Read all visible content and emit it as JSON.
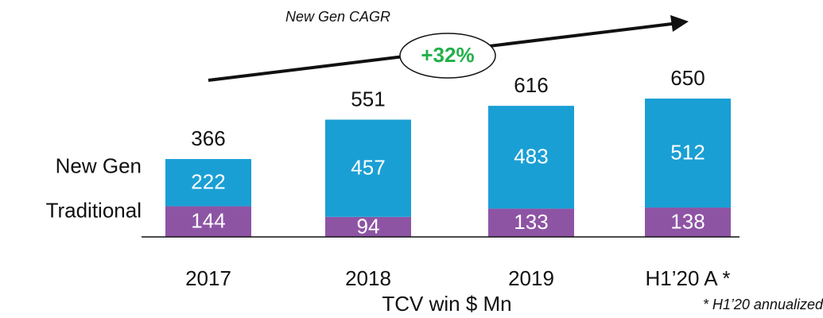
{
  "chart_data": {
    "type": "stacked_bar",
    "annotation": "New Gen CAGR",
    "growth_label": "+32%",
    "axis_label": "TCV win $ Mn",
    "footnote": "* H1’20 annualized",
    "categories": [
      "2017",
      "2018",
      "2019",
      "H1’20 A *"
    ],
    "series": [
      {
        "name": "Traditional",
        "color": "#8e54a4",
        "values": [
          144,
          94,
          133,
          138
        ]
      },
      {
        "name": "New Gen",
        "color": "#1a9fd4",
        "values": [
          222,
          457,
          483,
          512
        ]
      }
    ],
    "totals": [
      366,
      551,
      616,
      650
    ]
  }
}
